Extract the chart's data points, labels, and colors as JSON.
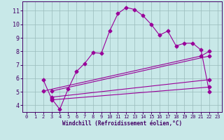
{
  "bg_color": "#c8e8e8",
  "line_color": "#990099",
  "grid_color": "#99bbbb",
  "xlabel": "Windchill (Refroidissement éolien,°C)",
  "xlabel_color": "#440066",
  "tick_color": "#440066",
  "xlim": [
    -0.5,
    23.5
  ],
  "ylim": [
    3.5,
    11.7
  ],
  "yticks": [
    4,
    5,
    6,
    7,
    8,
    9,
    10,
    11
  ],
  "xticks": [
    0,
    1,
    2,
    3,
    4,
    5,
    6,
    7,
    8,
    9,
    10,
    11,
    12,
    13,
    14,
    15,
    16,
    17,
    18,
    19,
    20,
    21,
    22,
    23
  ],
  "series1_x": [
    2,
    3,
    4,
    5,
    6,
    7,
    8,
    9,
    10,
    11,
    12,
    13,
    14,
    15,
    16,
    17,
    18,
    19,
    20,
    21,
    22
  ],
  "series1_y": [
    5.9,
    4.5,
    3.7,
    5.2,
    6.5,
    7.1,
    7.9,
    7.85,
    9.5,
    10.8,
    11.25,
    11.1,
    10.65,
    10.0,
    9.2,
    9.5,
    8.4,
    8.6,
    8.6,
    8.1,
    5.0
  ],
  "series2_x": [
    2,
    21,
    22
  ],
  "series2_y": [
    5.05,
    7.65,
    8.0
  ],
  "series3_x": [
    3,
    22
  ],
  "series3_y": [
    5.05,
    7.65
  ],
  "series4_x": [
    3,
    22
  ],
  "series4_y": [
    4.6,
    5.9
  ],
  "series5_x": [
    3,
    22
  ],
  "series5_y": [
    4.4,
    5.35
  ],
  "marker": "D",
  "markersize": 2.5,
  "linewidth": 0.8
}
